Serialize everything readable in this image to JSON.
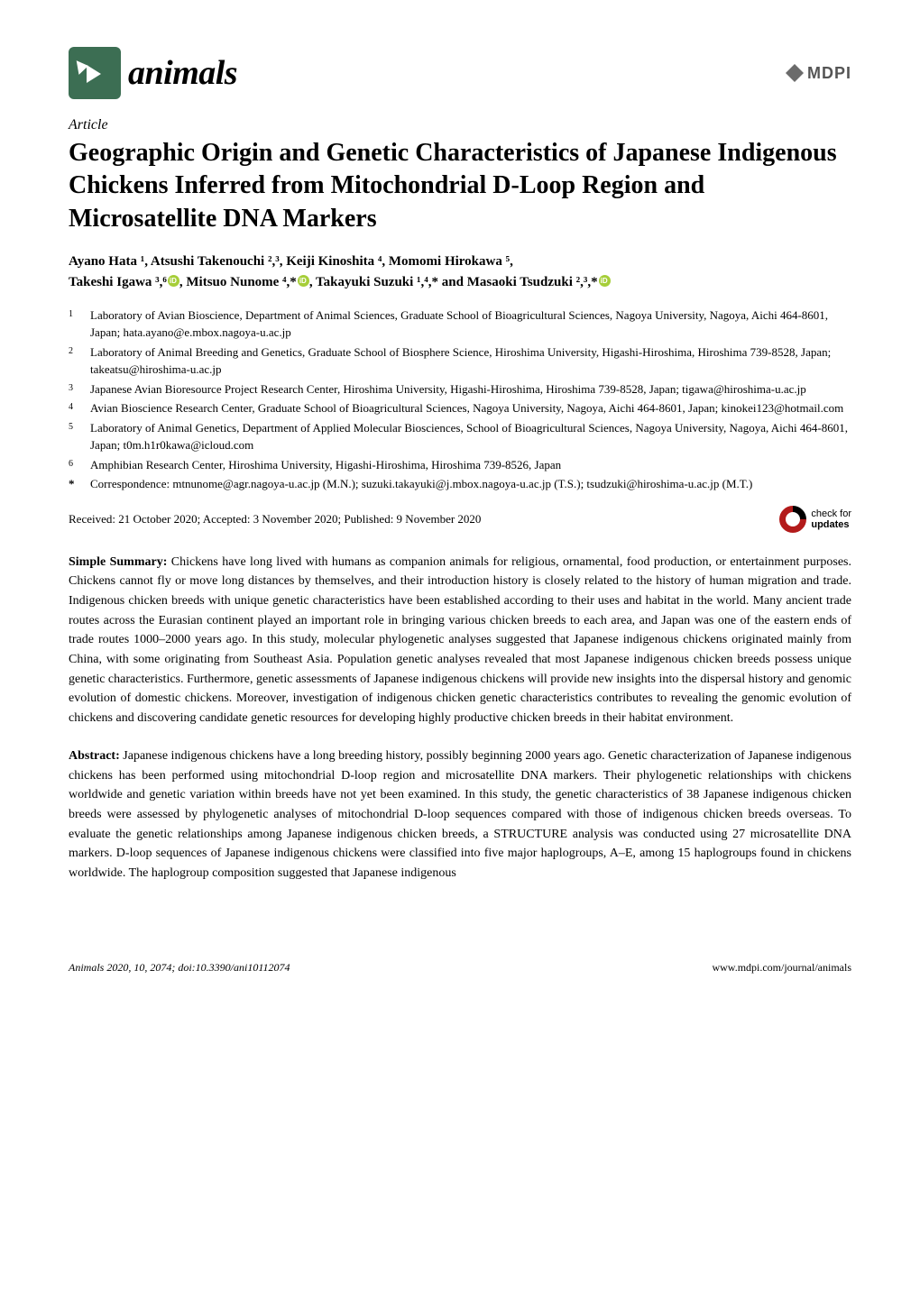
{
  "journal": {
    "name": "animals",
    "publisher": "MDPI"
  },
  "article": {
    "type": "Article",
    "title": "Geographic Origin and Genetic Characteristics of Japanese Indigenous Chickens Inferred from Mitochondrial D-Loop Region and Microsatellite DNA Markers",
    "authors_line1": "Ayano Hata ¹, Atsushi Takenouchi ²,³, Keiji Kinoshita ⁴, Momomi Hirokawa ⁵,",
    "authors_line2_a": "Takeshi Igawa ³,⁶",
    "authors_line2_b": ", Mitsuo Nunome ⁴,*",
    "authors_line2_c": ", Takayuki Suzuki ¹,⁴,* and Masaoki Tsudzuki ²,³,*",
    "affiliations": [
      {
        "n": "1",
        "text": "Laboratory of Avian Bioscience, Department of Animal Sciences, Graduate School of Bioagricultural Sciences, Nagoya University, Nagoya, Aichi 464-8601, Japan; hata.ayano@e.mbox.nagoya-u.ac.jp"
      },
      {
        "n": "2",
        "text": "Laboratory of Animal Breeding and Genetics, Graduate School of Biosphere Science, Hiroshima University, Higashi-Hiroshima, Hiroshima 739-8528, Japan; takeatsu@hiroshima-u.ac.jp"
      },
      {
        "n": "3",
        "text": "Japanese Avian Bioresource Project Research Center, Hiroshima University, Higashi-Hiroshima, Hiroshima 739-8528, Japan; tigawa@hiroshima-u.ac.jp"
      },
      {
        "n": "4",
        "text": "Avian Bioscience Research Center, Graduate School of Bioagricultural Sciences, Nagoya University, Nagoya, Aichi 464-8601, Japan; kinokei123@hotmail.com"
      },
      {
        "n": "5",
        "text": "Laboratory of Animal Genetics, Department of Applied Molecular Biosciences, School of Bioagricultural Sciences, Nagoya University, Nagoya, Aichi 464-8601, Japan; t0m.h1r0kawa@icloud.com"
      },
      {
        "n": "6",
        "text": "Amphibian Research Center, Hiroshima University, Higashi-Hiroshima, Hiroshima 739-8526, Japan"
      }
    ],
    "correspondence": "Correspondence: mtnunome@agr.nagoya-u.ac.jp (M.N.); suzuki.takayuki@j.mbox.nagoya-u.ac.jp (T.S.); tsudzuki@hiroshima-u.ac.jp (M.T.)",
    "dates": "Received: 21 October 2020; Accepted: 3 November 2020; Published: 9 November 2020",
    "updates_label": "check for updates"
  },
  "simple_summary": {
    "label": "Simple Summary:",
    "text": " Chickens have long lived with humans as companion animals for religious, ornamental, food production, or entertainment purposes. Chickens cannot fly or move long distances by themselves, and their introduction history is closely related to the history of human migration and trade. Indigenous chicken breeds with unique genetic characteristics have been established according to their uses and habitat in the world. Many ancient trade routes across the Eurasian continent played an important role in bringing various chicken breeds to each area, and Japan was one of the eastern ends of trade routes 1000–2000 years ago. In this study, molecular phylogenetic analyses suggested that Japanese indigenous chickens originated mainly from China, with some originating from Southeast Asia. Population genetic analyses revealed that most Japanese indigenous chicken breeds possess unique genetic characteristics. Furthermore, genetic assessments of Japanese indigenous chickens will provide new insights into the dispersal history and genomic evolution of domestic chickens. Moreover, investigation of indigenous chicken genetic characteristics contributes to revealing the genomic evolution of chickens and discovering candidate genetic resources for developing highly productive chicken breeds in their habitat environment."
  },
  "abstract": {
    "label": "Abstract:",
    "text": " Japanese indigenous chickens have a long breeding history, possibly beginning 2000 years ago. Genetic characterization of Japanese indigenous chickens has been performed using mitochondrial D-loop region and microsatellite DNA markers. Their phylogenetic relationships with chickens worldwide and genetic variation within breeds have not yet been examined. In this study, the genetic characteristics of 38 Japanese indigenous chicken breeds were assessed by phylogenetic analyses of mitochondrial D-loop sequences compared with those of indigenous chicken breeds overseas. To evaluate the genetic relationships among Japanese indigenous chicken breeds, a STRUCTURE analysis was conducted using 27 microsatellite DNA markers. D-loop sequences of Japanese indigenous chickens were classified into five major haplogroups, A–E, among 15 haplogroups found in chickens worldwide. The haplogroup composition suggested that Japanese indigenous"
  },
  "footer": {
    "left": "Animals 2020, 10, 2074; doi:10.3390/ani10112074",
    "right": "www.mdpi.com/journal/animals"
  },
  "colors": {
    "logo_bg": "#3c6e53",
    "orcid": "#a6ce39",
    "updates_ring": "#b31b1b",
    "text": "#000000",
    "bg": "#ffffff"
  },
  "typography": {
    "title_fontsize": 28,
    "body_fontsize": 14,
    "aff_fontsize": 13,
    "footer_fontsize": 12,
    "journal_fontsize": 38
  }
}
